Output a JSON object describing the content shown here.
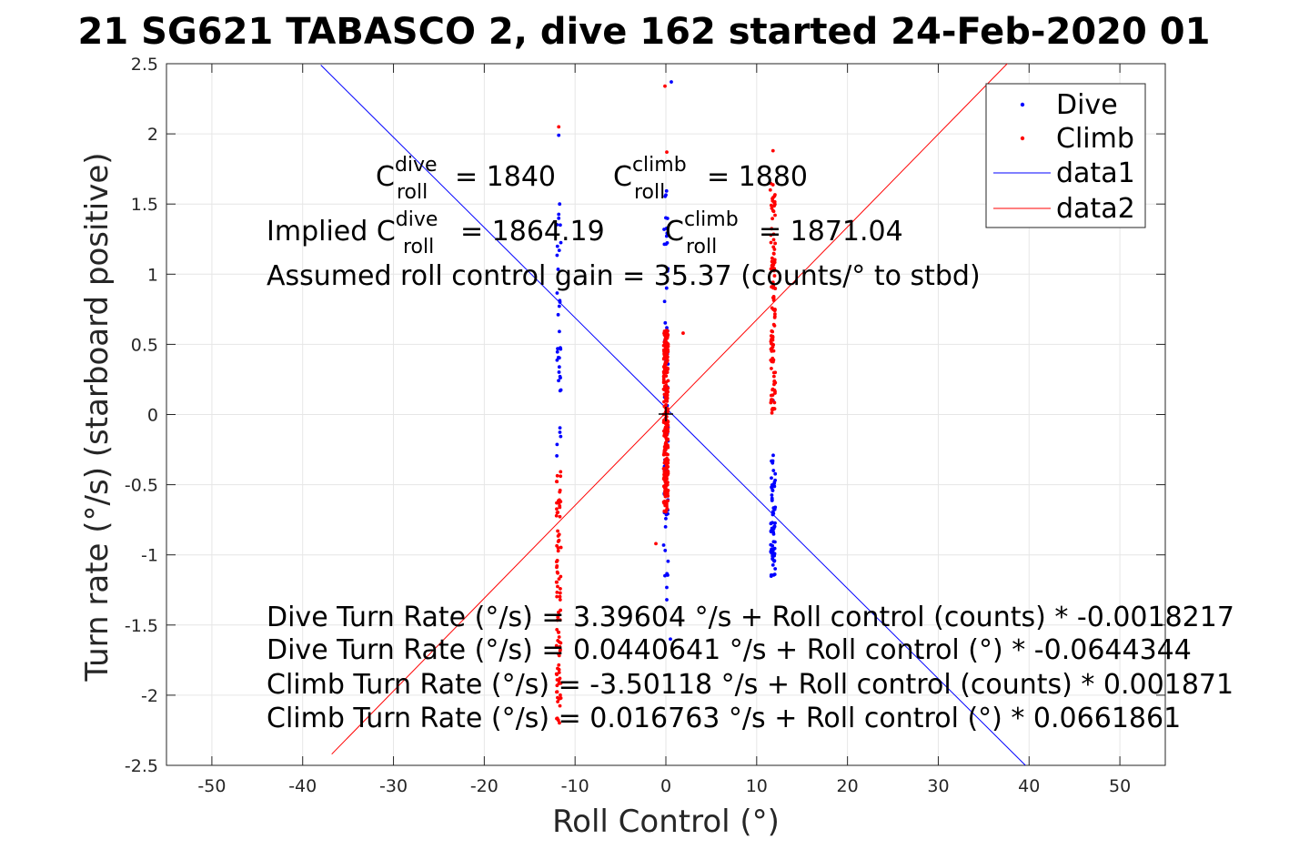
{
  "chart_data": {
    "type": "scatter",
    "title": "21 SG621 TABASCO 2, dive 162 started 24-Feb-2020 01",
    "xlabel": "Roll Control (°)",
    "ylabel": "Turn rate (°/s) (starboard positive)",
    "xlim": [
      -55,
      55
    ],
    "ylim": [
      -2.5,
      2.5
    ],
    "x_ticks": [
      -50,
      -40,
      -30,
      -20,
      -10,
      0,
      10,
      20,
      30,
      40,
      50
    ],
    "y_ticks": [
      -2.5,
      -2,
      -1.5,
      -1,
      -0.5,
      0,
      0.5,
      1,
      1.5,
      2,
      2.5
    ],
    "x_tick_labels": [
      "-50",
      "-40",
      "-30",
      "-20",
      "-10",
      "0",
      "10",
      "20",
      "30",
      "40",
      "50"
    ],
    "y_tick_labels": [
      "-2.5",
      "-2",
      "-1.5",
      "-1",
      "-0.5",
      "0",
      "0.5",
      "1",
      "1.5",
      "2",
      "2.5"
    ],
    "grid": true,
    "legend_position": "top-right",
    "legend": [
      "Dive",
      "Climb",
      "data1",
      "data2"
    ],
    "colors": {
      "dive": "#0000ff",
      "climb": "#ff0000",
      "axis": "#262626",
      "grid": "#e6e6e6"
    },
    "series": [
      {
        "name": "Dive",
        "style": "points",
        "color": "#0000ff",
        "clusters": [
          {
            "x": -11.8,
            "y_min": -0.3,
            "y_max": 1.5,
            "n": 34
          },
          {
            "x": 0.0,
            "y_min": -1.3,
            "y_max": 1.6,
            "n": 60
          },
          {
            "x": 11.8,
            "y_min": -1.17,
            "y_max": -0.25,
            "n": 70
          }
        ],
        "points": [
          [
            -11.8,
            1.99
          ],
          [
            -11.7,
            1.5
          ],
          [
            0.6,
            2.37
          ],
          [
            0.1,
            -1.32
          ],
          [
            0.5,
            -1.6
          ],
          [
            11.8,
            0.1
          ]
        ]
      },
      {
        "name": "Climb",
        "style": "points",
        "color": "#ff0000",
        "clusters": [
          {
            "x": -11.8,
            "y_min": -2.2,
            "y_max": -0.4,
            "n": 90
          },
          {
            "x": 0.0,
            "y_min": -0.7,
            "y_max": 0.6,
            "n": 260
          },
          {
            "x": 11.8,
            "y_min": 0.0,
            "y_max": 1.65,
            "n": 110
          }
        ],
        "points": [
          [
            -11.8,
            2.05
          ],
          [
            -0.1,
            2.34
          ],
          [
            -1.1,
            -0.92
          ],
          [
            0.1,
            1.87
          ],
          [
            1.9,
            0.58
          ],
          [
            11.8,
            1.88
          ],
          [
            11.5,
            1.6
          ]
        ]
      },
      {
        "name": "data1",
        "style": "line",
        "color": "#0000ff",
        "x": [
          -38.0,
          39.6
        ],
        "y": [
          2.49,
          -2.5
        ]
      },
      {
        "name": "data2",
        "style": "line",
        "color": "#ff0000",
        "x": [
          -36.8,
          38.8
        ],
        "y": [
          -2.42,
          2.58
        ]
      }
    ],
    "annotations": {
      "c_dive": "= 1840",
      "c_climb": "= 1880",
      "implied_prefix": "Implied C",
      "implied_dive": "= 1864.19",
      "implied_climb": "= 1871.04",
      "gain": "Assumed roll control gain = 35.37 (counts/° to stbd)",
      "eq1": "Dive Turn Rate (°/s) = 3.39604 °/s + Roll control (counts) * -0.0018217",
      "eq2": "Dive Turn Rate (°/s) = 0.0440641 °/s + Roll control (°) * -0.0644344",
      "eq3": "Climb Turn Rate (°/s) = -3.50118 °/s + Roll control (counts) * 0.001871",
      "eq4": "Climb Turn Rate (°/s) = 0.016763 °/s + Roll control (°) * 0.0661861",
      "c_symbol": "C",
      "sub_roll": "roll",
      "sup_dive": "dive",
      "sup_climb": "climb"
    }
  }
}
